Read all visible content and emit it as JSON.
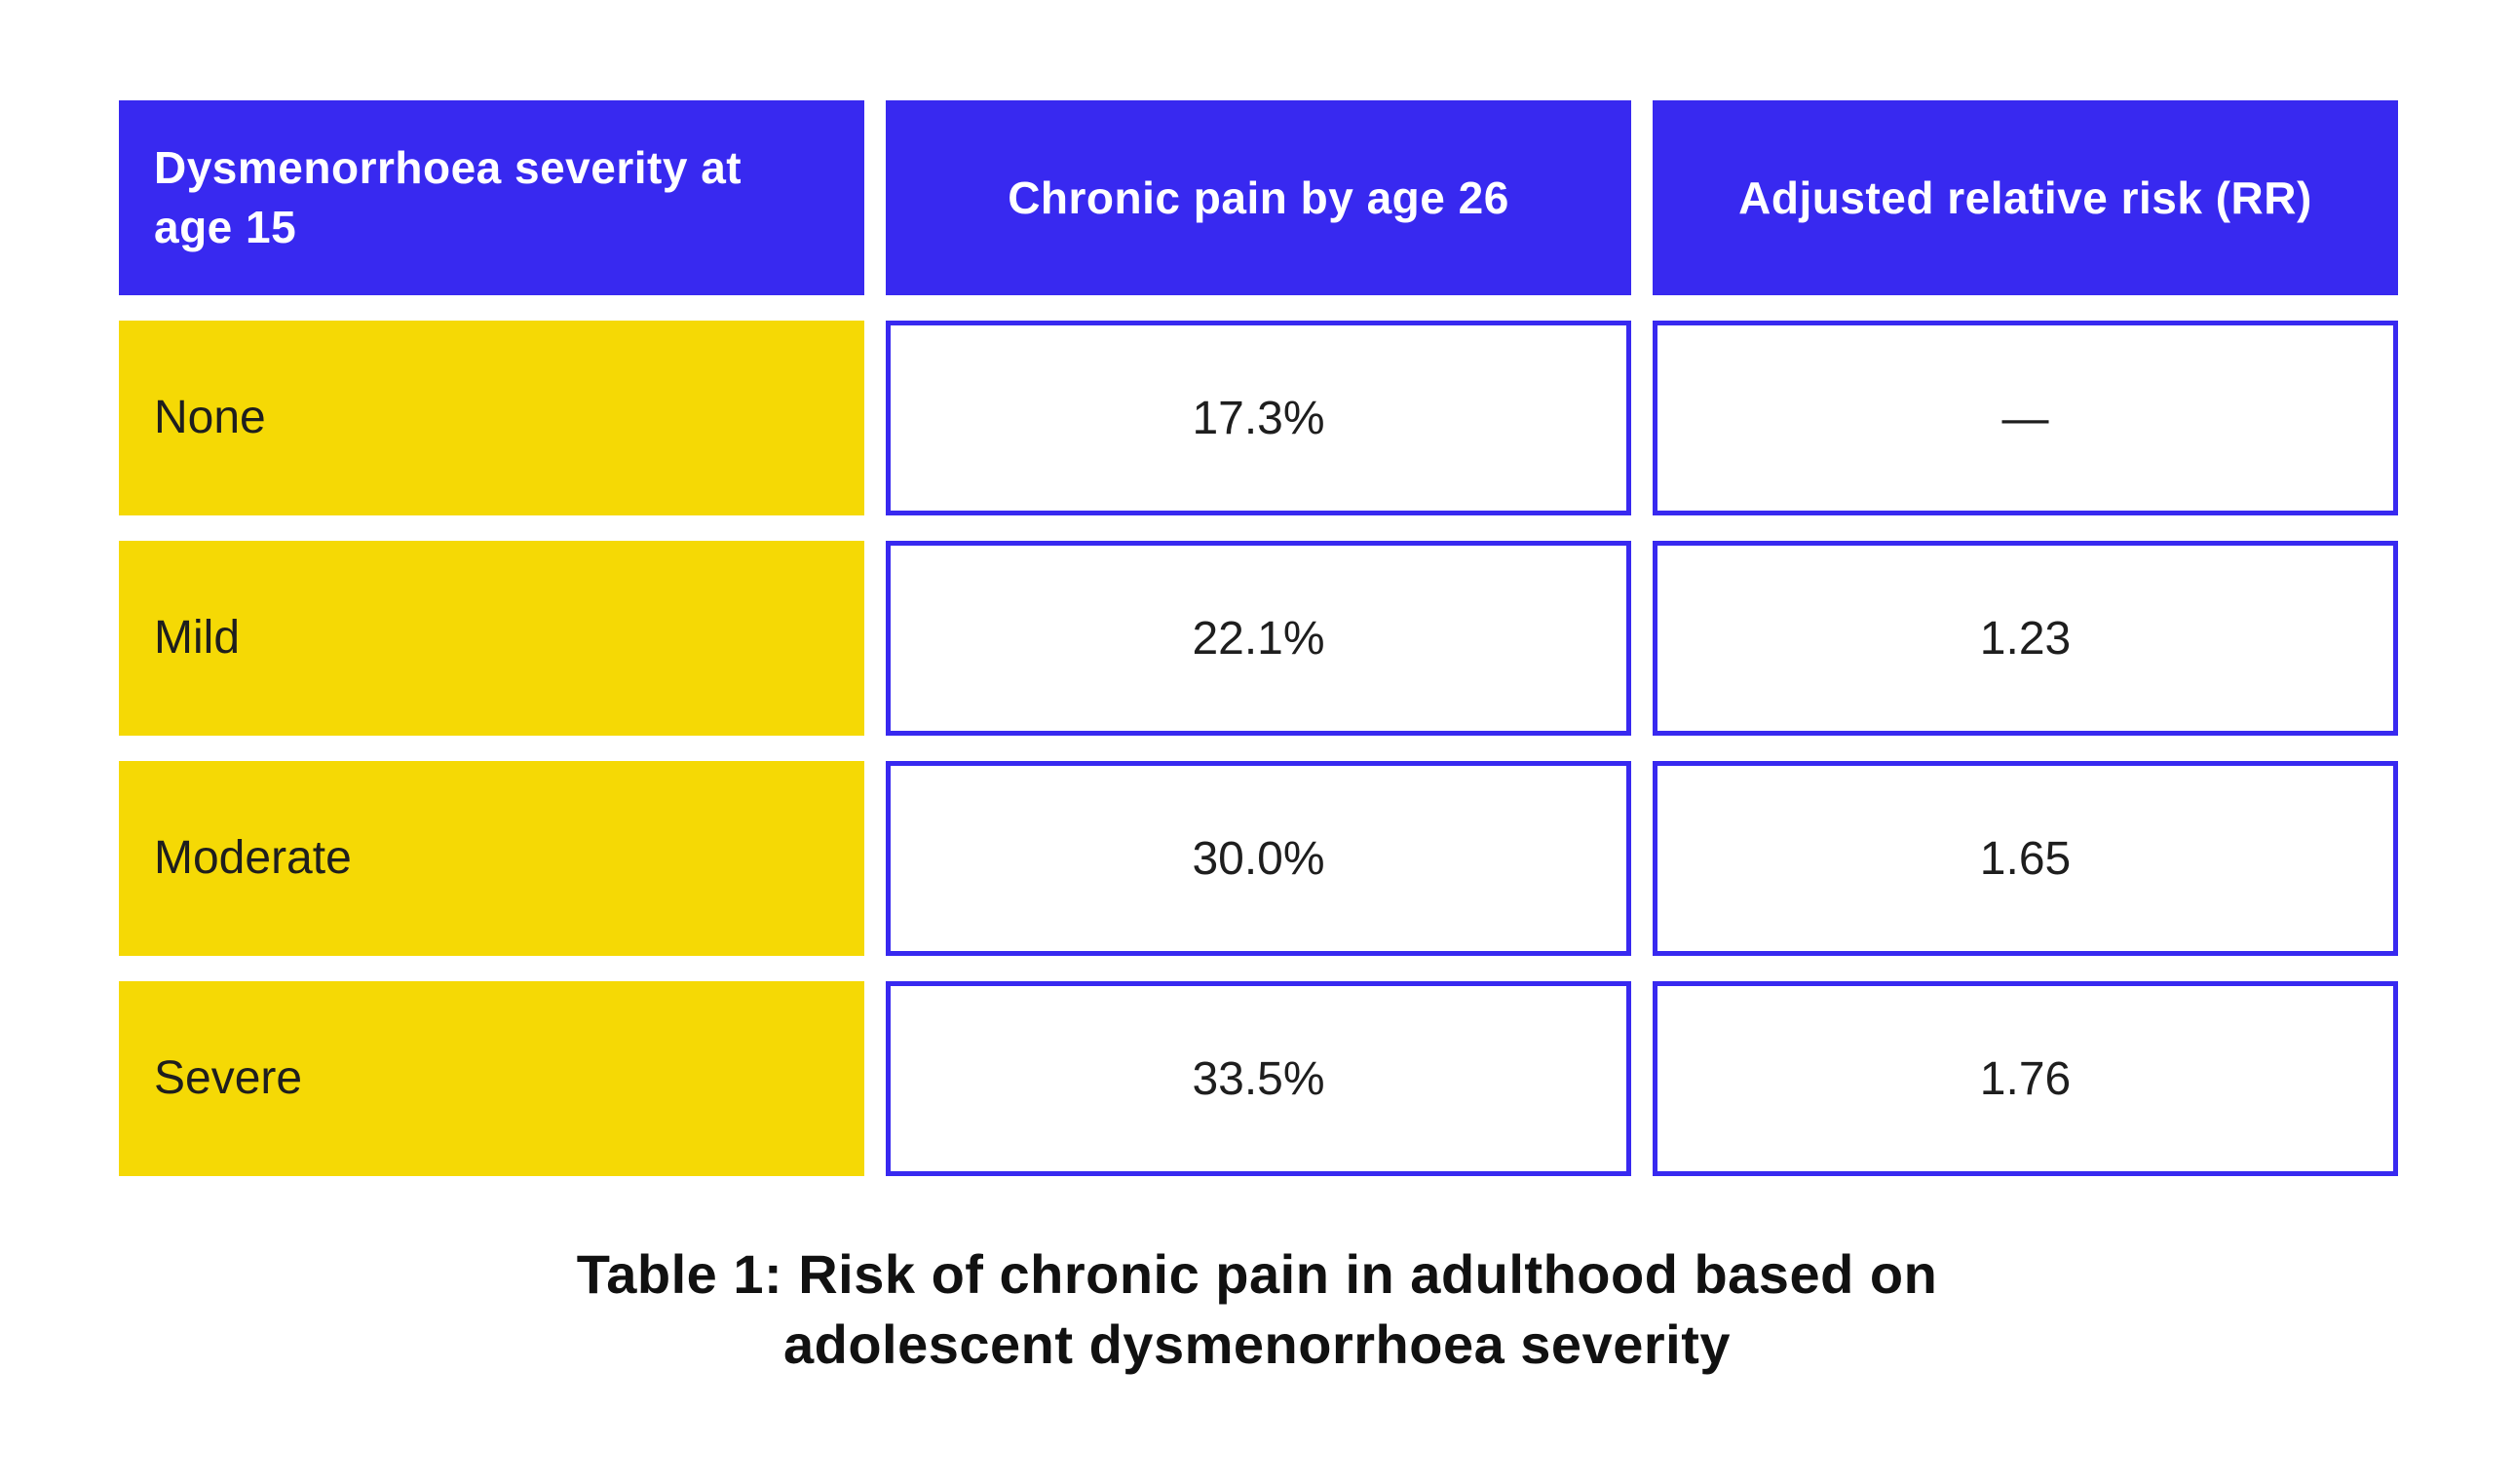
{
  "colors": {
    "page_background": "#ffffff",
    "header_blue": "#3829f0",
    "accent_yellow": "#f5d905",
    "cell_border_blue": "#3829f0",
    "header_text": "#ffffff",
    "body_text": "#1e1e1e",
    "caption_text": "#111111"
  },
  "chart_data": {
    "type": "table",
    "title": "Table 1: Risk of chronic pain in adulthood based on adolescent dysmenorrhoea severity",
    "columns": [
      "Dysmenorrhoea severity at age 15",
      "Chronic pain by age 26",
      "Adjusted relative risk (RR)"
    ],
    "rows": [
      [
        "None",
        "17.3%",
        "—"
      ],
      [
        "Mild",
        "22.1%",
        "1.23"
      ],
      [
        "Moderate",
        "30.0%",
        "1.65"
      ],
      [
        "Severe",
        "33.5%",
        "1.76"
      ]
    ],
    "layout_hints": {
      "header_style": "solid blue fill, white bold text",
      "label_column_style": "solid yellow fill, dark text, left aligned",
      "value_cell_style": "white fill, thick blue border, centered text",
      "grid": "separated cells with white gutters"
    }
  },
  "caption": {
    "lines": [
      "Table 1: Risk of chronic pain in adulthood based on",
      "adolescent dysmenorrhoea severity"
    ]
  }
}
